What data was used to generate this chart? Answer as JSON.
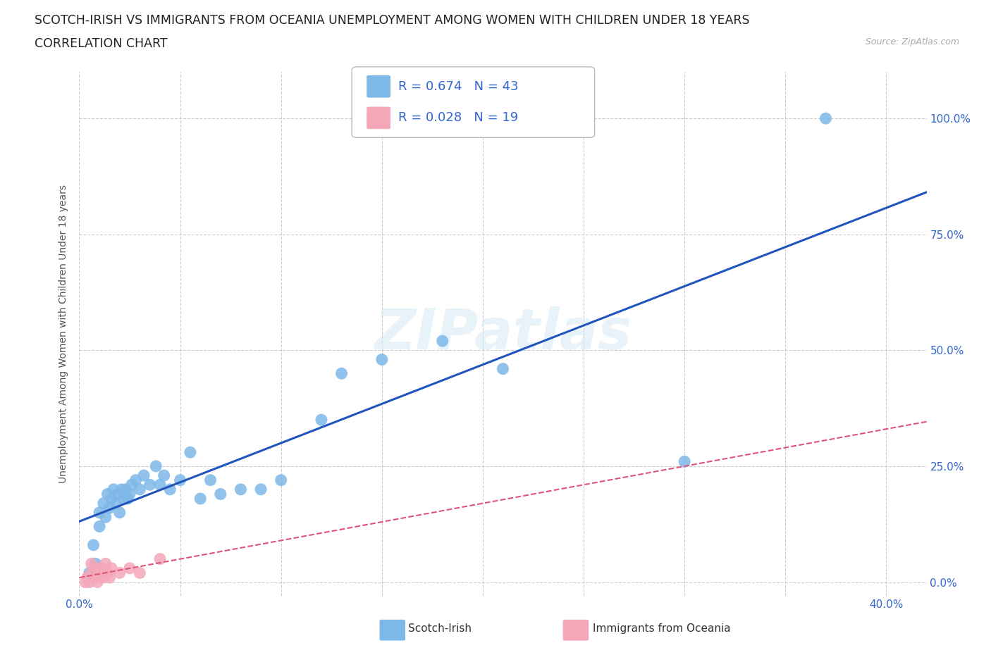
{
  "title_line1": "SCOTCH-IRISH VS IMMIGRANTS FROM OCEANIA UNEMPLOYMENT AMONG WOMEN WITH CHILDREN UNDER 18 YEARS",
  "title_line2": "CORRELATION CHART",
  "source_text": "Source: ZipAtlas.com",
  "ylabel": "Unemployment Among Women with Children Under 18 years",
  "xlim": [
    0.0,
    0.42
  ],
  "ylim": [
    -0.03,
    1.1
  ],
  "y_tick_positions": [
    0.0,
    0.25,
    0.5,
    0.75,
    1.0
  ],
  "y_tick_labels": [
    "0.0%",
    "25.0%",
    "50.0%",
    "75.0%",
    "100.0%"
  ],
  "x_tick_positions": [
    0.0,
    0.05,
    0.1,
    0.15,
    0.2,
    0.25,
    0.3,
    0.35,
    0.4
  ],
  "grid_color": "#cccccc",
  "background_color": "#ffffff",
  "watermark": "ZIPatlas",
  "scotch_irish_color": "#7eb8e8",
  "oceania_color": "#f4a7b9",
  "line1_color": "#2255bb",
  "line2_color": "#dd5577",
  "scotch_irish_x": [
    0.005,
    0.007,
    0.008,
    0.01,
    0.01,
    0.012,
    0.013,
    0.014,
    0.015,
    0.016,
    0.017,
    0.018,
    0.019,
    0.02,
    0.021,
    0.022,
    0.023,
    0.024,
    0.025,
    0.026,
    0.028,
    0.03,
    0.032,
    0.035,
    0.038,
    0.04,
    0.042,
    0.045,
    0.05,
    0.055,
    0.06,
    0.065,
    0.07,
    0.08,
    0.09,
    0.1,
    0.12,
    0.13,
    0.15,
    0.18,
    0.21,
    0.3,
    0.37
  ],
  "scotch_irish_y": [
    0.02,
    0.08,
    0.04,
    0.12,
    0.15,
    0.17,
    0.14,
    0.19,
    0.16,
    0.18,
    0.2,
    0.17,
    0.19,
    0.15,
    0.2,
    0.18,
    0.2,
    0.18,
    0.19,
    0.21,
    0.22,
    0.2,
    0.23,
    0.21,
    0.25,
    0.21,
    0.23,
    0.2,
    0.22,
    0.28,
    0.18,
    0.22,
    0.19,
    0.2,
    0.2,
    0.22,
    0.35,
    0.45,
    0.48,
    0.52,
    0.46,
    0.26,
    1.0
  ],
  "oceania_x": [
    0.003,
    0.004,
    0.005,
    0.006,
    0.006,
    0.007,
    0.008,
    0.009,
    0.01,
    0.011,
    0.012,
    0.013,
    0.014,
    0.015,
    0.016,
    0.02,
    0.025,
    0.03,
    0.04
  ],
  "oceania_y": [
    0.0,
    0.01,
    0.0,
    0.02,
    0.04,
    0.01,
    0.03,
    0.0,
    0.02,
    0.03,
    0.01,
    0.04,
    0.02,
    0.01,
    0.03,
    0.02,
    0.03,
    0.02,
    0.05
  ]
}
